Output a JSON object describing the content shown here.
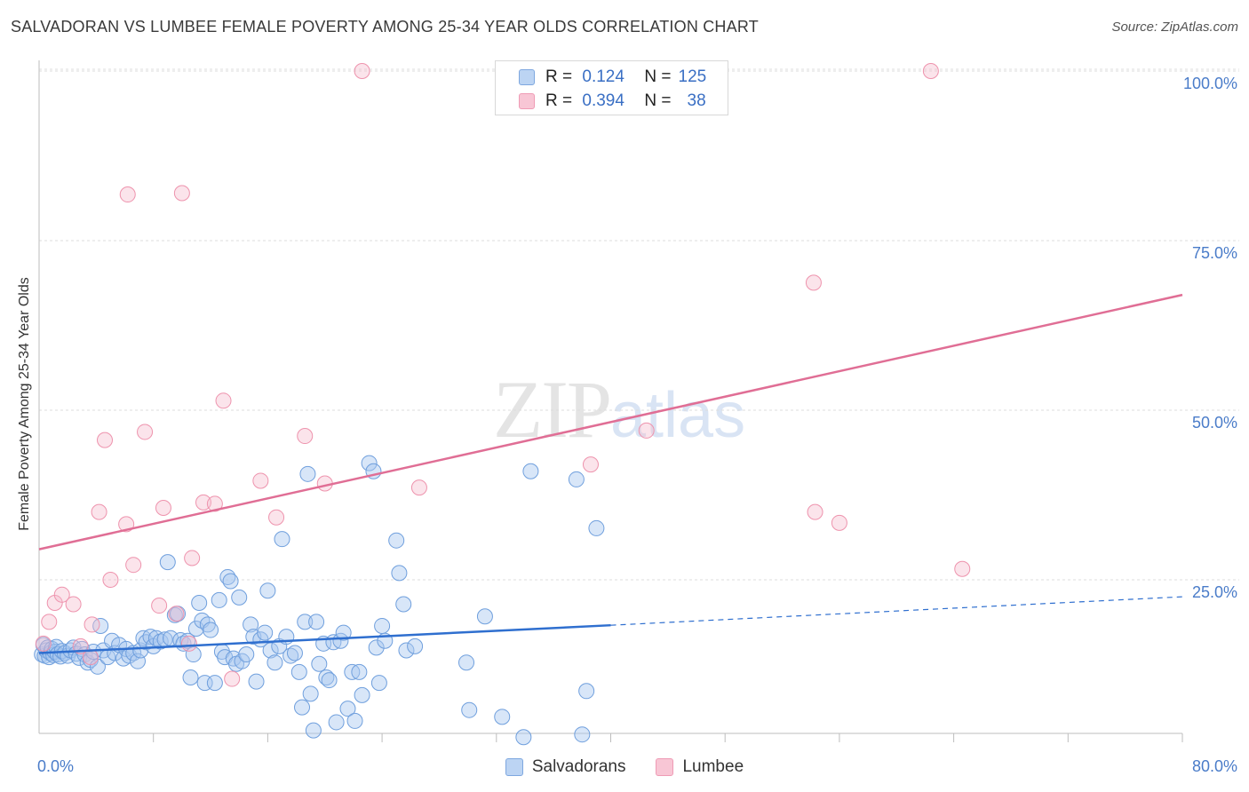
{
  "header": {
    "title": "SALVADORAN VS LUMBEE FEMALE POVERTY AMONG 25-34 YEAR OLDS CORRELATION CHART",
    "source": "Source: ZipAtlas.com"
  },
  "watermark": {
    "zip": "ZIP",
    "atlas": "atlas"
  },
  "legend_top": [
    {
      "r_label": "R =",
      "r_value": "0.124",
      "n_label": "N =",
      "n_value": "125"
    },
    {
      "r_label": "R =",
      "r_value": "0.394",
      "n_label": "N =",
      "n_value": "38"
    }
  ],
  "legend_bottom": [
    {
      "label": "Salvadorans"
    },
    {
      "label": "Lumbee"
    }
  ],
  "colors": {
    "salvadorans_fill": "#a9c8ef",
    "salvadorans_stroke": "#6f9fdd",
    "salvadorans_line": "#2f6fcf",
    "lumbee_fill": "#f6bccd",
    "lumbee_stroke": "#ee93ad",
    "lumbee_line": "#e06e95",
    "tick_text": "#4a7cc9",
    "grid": "#dddddd"
  },
  "chart_data": {
    "type": "scatter",
    "title": "SALVADORAN VS LUMBEE FEMALE POVERTY AMONG 25-34 YEAR OLDS CORRELATION CHART",
    "xlabel": "",
    "ylabel": "Female Poverty Among 25-34 Year Olds",
    "xlim": [
      0,
      80
    ],
    "ylim": [
      0,
      105
    ],
    "x_tick_labels": [
      {
        "x": 0,
        "label": "0.0%"
      },
      {
        "x": 80,
        "label": "80.0%"
      }
    ],
    "y_tick_labels": [
      {
        "y": 25,
        "label": "25.0%"
      },
      {
        "y": 50,
        "label": "50.0%"
      },
      {
        "y": 75,
        "label": "75.0%"
      },
      {
        "y": 100,
        "label": "100.0%"
      }
    ],
    "grid": true,
    "legend": "top-center",
    "series": [
      {
        "name": "Salvadorans",
        "r": 0.124,
        "n": 125,
        "trend": {
          "x0": 0,
          "y0": 14.2,
          "x1": 40,
          "y1": 18.3,
          "dashed_to_x": 80,
          "dashed_to_y": 22.5
        },
        "points": [
          [
            0.2,
            14.0
          ],
          [
            0.3,
            15.4
          ],
          [
            0.4,
            13.8
          ],
          [
            0.5,
            14.6
          ],
          [
            0.6,
            15.0
          ],
          [
            0.7,
            13.6
          ],
          [
            0.8,
            14.2
          ],
          [
            0.9,
            14.8
          ],
          [
            1.0,
            13.9
          ],
          [
            1.1,
            14.4
          ],
          [
            1.2,
            15.1
          ],
          [
            1.3,
            14.0
          ],
          [
            1.5,
            13.7
          ],
          [
            1.6,
            14.5
          ],
          [
            1.8,
            14.2
          ],
          [
            2.0,
            13.8
          ],
          [
            2.2,
            14.6
          ],
          [
            2.4,
            15.0
          ],
          [
            2.6,
            14.1
          ],
          [
            2.8,
            13.5
          ],
          [
            3.0,
            14.8
          ],
          [
            3.2,
            14.0
          ],
          [
            3.4,
            12.8
          ],
          [
            3.6,
            13.2
          ],
          [
            3.8,
            14.4
          ],
          [
            4.1,
            12.2
          ],
          [
            4.3,
            18.2
          ],
          [
            4.5,
            14.6
          ],
          [
            4.8,
            13.6
          ],
          [
            5.1,
            16.0
          ],
          [
            5.3,
            14.2
          ],
          [
            5.6,
            15.4
          ],
          [
            5.9,
            13.4
          ],
          [
            6.1,
            14.8
          ],
          [
            6.3,
            13.8
          ],
          [
            6.6,
            14.2
          ],
          [
            6.9,
            13.0
          ],
          [
            7.1,
            14.6
          ],
          [
            7.3,
            16.4
          ],
          [
            7.5,
            15.8
          ],
          [
            7.8,
            16.6
          ],
          [
            8.0,
            15.2
          ],
          [
            8.2,
            16.4
          ],
          [
            8.5,
            15.9
          ],
          [
            8.8,
            16.2
          ],
          [
            9.0,
            27.6
          ],
          [
            9.2,
            16.4
          ],
          [
            9.5,
            19.8
          ],
          [
            9.7,
            20.0
          ],
          [
            9.9,
            16.1
          ],
          [
            10.1,
            15.6
          ],
          [
            10.4,
            16.0
          ],
          [
            10.6,
            10.6
          ],
          [
            10.8,
            14.0
          ],
          [
            11.0,
            17.8
          ],
          [
            11.2,
            21.6
          ],
          [
            11.4,
            19.0
          ],
          [
            11.6,
            9.8
          ],
          [
            11.8,
            18.4
          ],
          [
            12.0,
            17.6
          ],
          [
            12.3,
            9.8
          ],
          [
            12.6,
            22.0
          ],
          [
            12.8,
            14.4
          ],
          [
            13.0,
            13.6
          ],
          [
            13.2,
            25.4
          ],
          [
            13.4,
            24.8
          ],
          [
            13.6,
            13.4
          ],
          [
            13.8,
            12.6
          ],
          [
            14.0,
            22.4
          ],
          [
            14.2,
            13.0
          ],
          [
            14.5,
            14.0
          ],
          [
            14.8,
            18.4
          ],
          [
            15.0,
            16.6
          ],
          [
            15.2,
            10.0
          ],
          [
            15.5,
            16.2
          ],
          [
            15.8,
            17.2
          ],
          [
            16.0,
            23.4
          ],
          [
            16.2,
            14.6
          ],
          [
            16.5,
            12.8
          ],
          [
            16.8,
            15.2
          ],
          [
            17.0,
            31.0
          ],
          [
            17.3,
            16.6
          ],
          [
            17.6,
            13.8
          ],
          [
            17.9,
            14.2
          ],
          [
            18.2,
            11.4
          ],
          [
            18.4,
            6.2
          ],
          [
            18.6,
            18.8
          ],
          [
            18.8,
            40.6
          ],
          [
            19.0,
            8.2
          ],
          [
            19.2,
            2.8
          ],
          [
            19.4,
            18.8
          ],
          [
            19.6,
            12.6
          ],
          [
            19.9,
            15.6
          ],
          [
            20.1,
            10.6
          ],
          [
            20.3,
            10.2
          ],
          [
            20.6,
            15.8
          ],
          [
            20.8,
            4.0
          ],
          [
            21.1,
            16.0
          ],
          [
            21.3,
            17.2
          ],
          [
            21.6,
            6.0
          ],
          [
            21.9,
            11.4
          ],
          [
            22.1,
            4.2
          ],
          [
            22.4,
            11.4
          ],
          [
            22.6,
            8.0
          ],
          [
            23.1,
            42.2
          ],
          [
            23.4,
            41.0
          ],
          [
            23.6,
            15.0
          ],
          [
            23.8,
            9.8
          ],
          [
            24.0,
            18.2
          ],
          [
            24.2,
            16.0
          ],
          [
            25.0,
            30.8
          ],
          [
            25.2,
            26.0
          ],
          [
            25.5,
            21.4
          ],
          [
            25.7,
            14.6
          ],
          [
            26.3,
            15.2
          ],
          [
            29.9,
            12.8
          ],
          [
            30.1,
            5.8
          ],
          [
            31.2,
            19.6
          ],
          [
            32.4,
            4.8
          ],
          [
            33.9,
            1.8
          ],
          [
            34.4,
            41.0
          ],
          [
            37.6,
            39.8
          ],
          [
            38.0,
            2.2
          ],
          [
            38.3,
            8.6
          ],
          [
            39.0,
            32.6
          ]
        ]
      },
      {
        "name": "Lumbee",
        "r": 0.394,
        "n": 38,
        "trend": {
          "x0": 0,
          "y0": 29.5,
          "x1": 80,
          "y1": 67.0
        },
        "points": [
          [
            0.3,
            15.6
          ],
          [
            0.7,
            18.8
          ],
          [
            1.1,
            21.6
          ],
          [
            1.6,
            22.8
          ],
          [
            2.4,
            21.4
          ],
          [
            2.9,
            15.2
          ],
          [
            3.6,
            13.6
          ],
          [
            3.7,
            18.4
          ],
          [
            4.2,
            35.0
          ],
          [
            4.6,
            45.6
          ],
          [
            5.0,
            25.0
          ],
          [
            6.1,
            33.2
          ],
          [
            6.2,
            81.8
          ],
          [
            6.6,
            27.2
          ],
          [
            7.4,
            46.8
          ],
          [
            8.4,
            21.2
          ],
          [
            8.7,
            35.6
          ],
          [
            9.6,
            20.0
          ],
          [
            10.0,
            82.0
          ],
          [
            10.5,
            15.6
          ],
          [
            10.7,
            28.2
          ],
          [
            11.5,
            36.4
          ],
          [
            12.3,
            36.2
          ],
          [
            12.9,
            51.4
          ],
          [
            13.5,
            10.4
          ],
          [
            15.5,
            39.6
          ],
          [
            16.6,
            34.2
          ],
          [
            18.6,
            46.2
          ],
          [
            20.0,
            39.2
          ],
          [
            22.6,
            100.0
          ],
          [
            26.6,
            38.6
          ],
          [
            38.6,
            42.0
          ],
          [
            42.5,
            47.0
          ],
          [
            54.2,
            68.8
          ],
          [
            54.3,
            35.0
          ],
          [
            56.0,
            33.4
          ],
          [
            62.4,
            100.0
          ],
          [
            64.6,
            26.6
          ]
        ]
      }
    ]
  }
}
